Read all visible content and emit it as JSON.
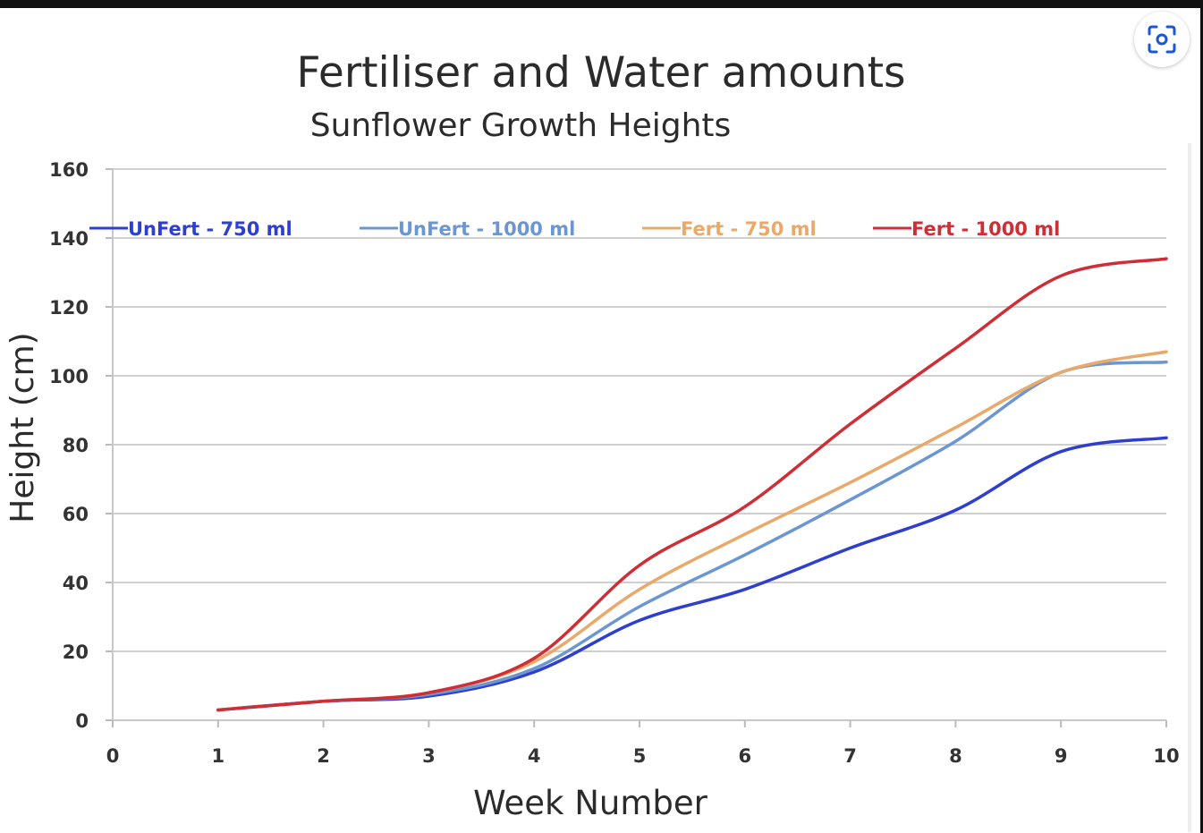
{
  "chart_data": {
    "type": "line",
    "title": "Fertiliser and Water amounts",
    "subtitle": "Sunflower Growth Heights",
    "xlabel": "Week Number",
    "ylabel": "Height (cm)",
    "xlim": [
      0,
      10
    ],
    "ylim": [
      0,
      160
    ],
    "xticks": [
      0,
      1,
      2,
      3,
      4,
      5,
      6,
      7,
      8,
      9,
      10
    ],
    "yticks": [
      0,
      20,
      40,
      60,
      80,
      100,
      120,
      140,
      160
    ],
    "grid": "horizontal",
    "legend_position": "top",
    "x": [
      1,
      2,
      3,
      4,
      5,
      6,
      7,
      8,
      9,
      10
    ],
    "series": [
      {
        "name": "UnFert - 750 ml",
        "color": "#2e3fd0",
        "values": [
          3,
          5.5,
          7,
          14,
          29,
          38,
          50,
          61,
          78,
          82
        ]
      },
      {
        "name": "UnFert - 1000 ml",
        "color": "#6b96d2",
        "values": [
          3,
          5.5,
          7.5,
          15,
          33,
          48,
          64,
          81,
          101,
          104
        ]
      },
      {
        "name": "Fert - 750 ml",
        "color": "#e8a96a",
        "values": [
          3,
          5.5,
          8,
          17,
          38,
          54,
          69,
          85,
          101,
          107
        ]
      },
      {
        "name": "Fert - 1000 ml",
        "color": "#cf2e36",
        "values": [
          3,
          5.5,
          8,
          18,
          45,
          62,
          86,
          108,
          129,
          134
        ]
      }
    ]
  },
  "icons": {
    "lens": "google-lens-icon"
  }
}
